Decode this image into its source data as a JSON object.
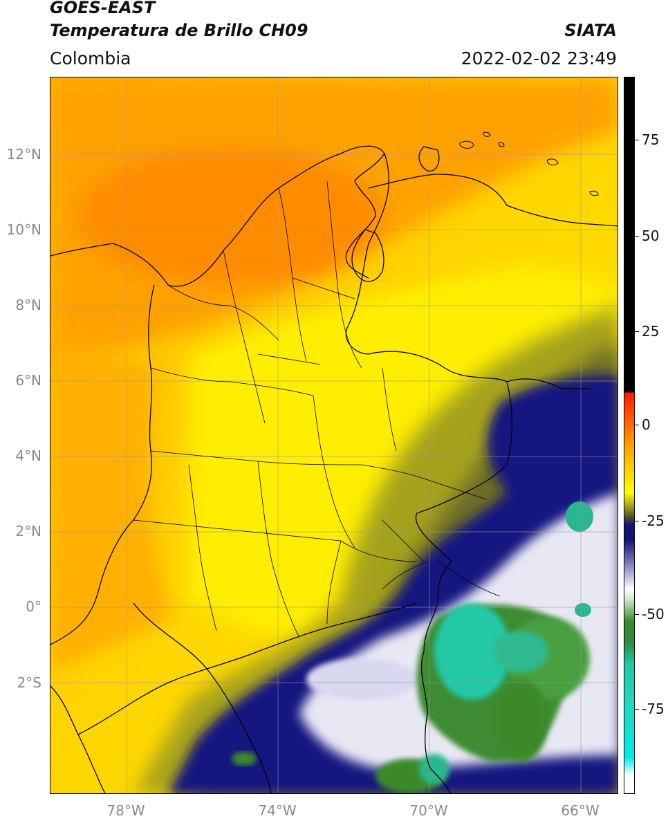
{
  "header": {
    "title_line1": "GOES-EAST",
    "title_line2": "Temperatura de Brillo CH09",
    "region": "Colombia",
    "organization": "SIATA",
    "datetime": "2022-02-02 23:49"
  },
  "map": {
    "lat_labels": [
      "12°N",
      "10°N",
      "8°N",
      "6°N",
      "4°N",
      "2°N",
      "0°",
      "2°S"
    ],
    "lon_labels": [
      "78°W",
      "74°W",
      "70°W",
      "66°W"
    ],
    "extent": {
      "lon_min": -80,
      "lon_max": -65,
      "lat_min": -5,
      "lat_max": 14
    }
  },
  "colorbar": {
    "ticks": [
      "75",
      "50",
      "25",
      "0",
      "-25",
      "-50",
      "-75"
    ],
    "colors": {
      "warm": "#000000",
      "hot": "#ff2200",
      "orange": "#ff9900",
      "yellow": "#ffee00",
      "olive": "#6b6b20",
      "navy": "#13137a",
      "white": "#ffffff",
      "green": "#3a8a2a",
      "teal": "#1fc9a6",
      "cyan": "#00e5e5"
    }
  }
}
